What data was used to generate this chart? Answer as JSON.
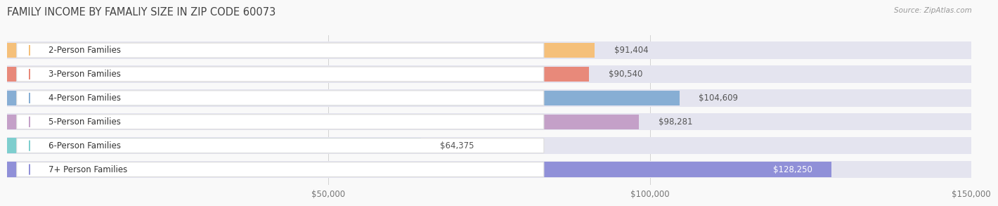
{
  "title": "FAMILY INCOME BY FAMALIY SIZE IN ZIP CODE 60073",
  "source": "Source: ZipAtlas.com",
  "categories": [
    "2-Person Families",
    "3-Person Families",
    "4-Person Families",
    "5-Person Families",
    "6-Person Families",
    "7+ Person Families"
  ],
  "values": [
    91404,
    90540,
    104609,
    98281,
    64375,
    128250
  ],
  "labels": [
    "$91,404",
    "$90,540",
    "$104,609",
    "$98,281",
    "$64,375",
    "$128,250"
  ],
  "bar_colors": [
    "#f5c07a",
    "#e8897a",
    "#87aed4",
    "#c4a0c8",
    "#7ecece",
    "#9090d8"
  ],
  "bar_bg_color": "#e4e4ef",
  "xlim": [
    0,
    150000
  ],
  "xticks": [
    0,
    50000,
    100000,
    150000
  ],
  "xticklabels": [
    "",
    "$50,000",
    "$100,000",
    "$150,000"
  ],
  "background_color": "#f9f9f9",
  "title_fontsize": 10.5,
  "label_fontsize": 8.5,
  "tick_fontsize": 8.5,
  "value_label_inside_color": "#ffffff",
  "value_label_outside_color": "#555555",
  "inside_threshold": 115000
}
